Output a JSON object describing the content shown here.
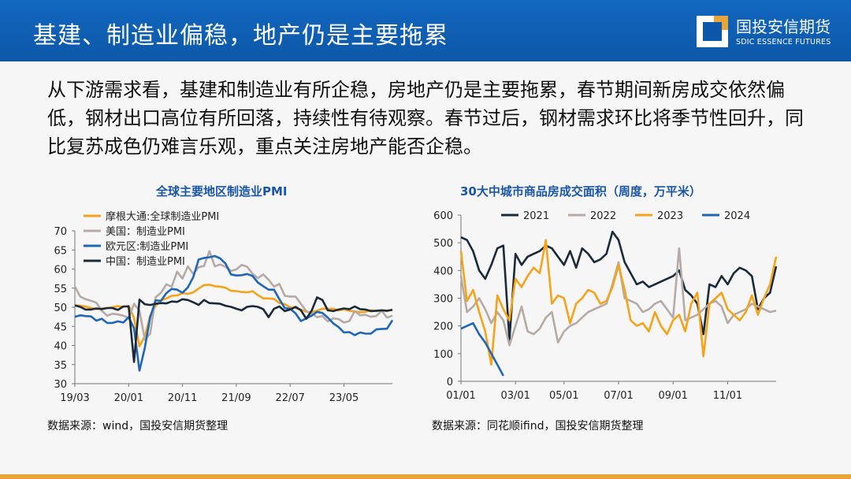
{
  "header": {
    "title": "基建、制造业偏稳，地产仍是主要拖累"
  },
  "logo": {
    "name_cn": "国投安信期货",
    "name_en": "SDIC ESSENCE FUTURES"
  },
  "intro": {
    "text": "从下游需求看，基建和制造业有所企稳，房地产仍是主要拖累，春节期间新房成交依然偏低，钢材出口高位有所回落，持续性有待观察。春节过后，钢材需求环比将季节性回升，同比复苏成色仍难言乐观，重点关注房地产能否企稳。"
  },
  "colors": {
    "header": "#0d57a8",
    "title_blue": "#1a56a8",
    "accent": "#e8a53a"
  },
  "chart_data": [
    {
      "type": "line",
      "title": "全球主要地区制造业PMI",
      "xlabel": "",
      "ylabel": "",
      "ylim": [
        30,
        70
      ],
      "yticks": [
        30,
        35,
        40,
        45,
        50,
        55,
        60,
        65,
        70
      ],
      "xticks": [
        "19/03",
        "20/01",
        "20/11",
        "21/09",
        "22/07",
        "23/05"
      ],
      "x_count": 60,
      "x_tick_index": [
        0,
        10,
        20,
        30,
        40,
        50
      ],
      "legend_position": "top-left",
      "series": [
        {
          "name": "摩根大通:全球制造业PMI",
          "color": "#f5a31a",
          "values": [
            50.5,
            50.4,
            50.2,
            49.8,
            49.5,
            49.7,
            49.8,
            50.0,
            50.3,
            50.1,
            50.4,
            47.2,
            39.8,
            42.4,
            47.8,
            50.3,
            51.8,
            52.3,
            53.0,
            53.1,
            53.7,
            53.5,
            53.9,
            54.9,
            55.8,
            55.9,
            55.5,
            55.4,
            55.1,
            54.3,
            54.2,
            54.0,
            53.9,
            54.2,
            53.2,
            52.3,
            52.3,
            52.2,
            51.1,
            50.8,
            50.0,
            49.8,
            49.4,
            48.8,
            48.7,
            49.1,
            49.6,
            49.6,
            49.6,
            49.2,
            49.4,
            49.1,
            48.9,
            48.7,
            48.8,
            49.2,
            49.0,
            49.2,
            49.0,
            49.4
          ]
        },
        {
          "name": "美国：制造业PMI",
          "color": "#b5aaa5",
          "values": [
            55.4,
            52.8,
            52.1,
            51.7,
            51.2,
            49.1,
            47.8,
            48.3,
            48.1,
            47.8,
            47.2,
            50.9,
            49.1,
            41.5,
            43.1,
            52.6,
            53.8,
            56.0,
            55.4,
            59.3,
            57.5,
            60.7,
            58.7,
            60.5,
            60.8,
            64.7,
            60.7,
            61.2,
            60.6,
            59.5,
            59.9,
            61.1,
            60.6,
            58.8,
            57.6,
            58.6,
            57.2,
            55.4,
            56.1,
            53.0,
            52.8,
            52.8,
            50.9,
            49.0,
            48.4,
            47.4,
            47.7,
            46.3,
            47.1,
            46.9,
            46.0,
            46.4,
            49.0,
            47.9,
            48.0,
            47.5,
            47.7,
            49.1,
            47.3,
            47.8
          ]
        },
        {
          "name": "欧元区:制造业PMI",
          "color": "#2066b8",
          "values": [
            47.5,
            47.9,
            47.7,
            47.6,
            46.5,
            47.0,
            45.9,
            45.9,
            46.3,
            46.0,
            47.4,
            44.5,
            33.4,
            39.4,
            47.4,
            51.8,
            51.7,
            53.7,
            54.8,
            54.6,
            53.8,
            55.2,
            57.9,
            62.5,
            62.9,
            63.1,
            63.4,
            62.8,
            61.4,
            58.6,
            58.3,
            58.4,
            58.7,
            58.2,
            56.5,
            55.5,
            54.6,
            54.6,
            52.1,
            49.8,
            49.6,
            48.4,
            46.4,
            47.1,
            47.8,
            48.8,
            48.5,
            47.3,
            45.8,
            44.8,
            43.4,
            43.5,
            42.7,
            43.4,
            43.1,
            43.1,
            44.2,
            44.3,
            44.4,
            46.6
          ]
        },
        {
          "name": "中国：制造业PMI",
          "color": "#1a2a3a",
          "values": [
            50.5,
            50.1,
            49.4,
            49.4,
            49.7,
            49.5,
            49.8,
            49.8,
            49.3,
            50.2,
            50.2,
            35.7,
            52.0,
            50.8,
            50.6,
            50.9,
            51.1,
            51.0,
            51.5,
            51.4,
            52.1,
            51.9,
            51.3,
            50.6,
            51.9,
            51.1,
            51.0,
            50.9,
            50.4,
            50.1,
            49.6,
            49.2,
            50.1,
            50.3,
            50.1,
            49.5,
            47.4,
            49.6,
            50.2,
            49.0,
            49.4,
            50.1,
            49.2,
            47.0,
            49.1,
            52.6,
            51.9,
            49.2,
            49.0,
            49.4,
            49.7,
            49.5,
            50.2,
            49.5,
            49.4,
            49.0,
            49.1,
            49.2,
            49.1,
            49.3
          ]
        }
      ]
    },
    {
      "type": "line",
      "title": "30大中城市商品房成交面积（周度，万平米）",
      "xlabel": "",
      "ylabel": "",
      "ylim": [
        0,
        600
      ],
      "yticks": [
        0,
        100,
        200,
        300,
        400,
        500,
        600
      ],
      "xticks": [
        "01/01",
        "03/01",
        "05/01",
        "07/01",
        "09/01",
        "11/01"
      ],
      "x_count": 53,
      "x_tick_index": [
        0,
        9,
        17,
        26,
        35,
        44
      ],
      "legend_position": "top",
      "series": [
        {
          "name": "2021",
          "color": "#1a2a3a",
          "values": [
            520,
            510,
            470,
            400,
            370,
            420,
            480,
            490,
            150,
            460,
            420,
            450,
            460,
            470,
            490,
            480,
            450,
            420,
            470,
            410,
            480,
            460,
            430,
            440,
            460,
            540,
            510,
            430,
            390,
            350,
            360,
            340,
            350,
            360,
            370,
            380,
            400,
            330,
            310,
            280,
            170,
            350,
            340,
            380,
            350,
            390,
            410,
            400,
            380,
            260,
            300,
            320,
            415
          ]
        },
        {
          "name": "2022",
          "color": "#b5aaa5",
          "values": [
            380,
            250,
            270,
            300,
            260,
            210,
            250,
            220,
            130,
            200,
            270,
            180,
            170,
            190,
            230,
            250,
            140,
            180,
            200,
            210,
            230,
            250,
            260,
            270,
            280,
            350,
            430,
            300,
            290,
            280,
            250,
            260,
            280,
            290,
            260,
            230,
            480,
            220,
            230,
            240,
            260,
            280,
            290,
            270,
            210,
            240,
            250,
            260,
            280,
            270,
            260,
            250,
            255
          ]
        },
        {
          "name": "2023",
          "color": "#f5a31a",
          "values": [
            470,
            290,
            330,
            250,
            180,
            60,
            310,
            260,
            220,
            370,
            340,
            380,
            410,
            390,
            510,
            280,
            310,
            300,
            210,
            280,
            300,
            330,
            320,
            280,
            290,
            340,
            420,
            330,
            220,
            200,
            210,
            180,
            250,
            200,
            170,
            220,
            240,
            180,
            280,
            320,
            90,
            280,
            300,
            320,
            260,
            240,
            220,
            250,
            310,
            240,
            300,
            350,
            450
          ]
        },
        {
          "name": "2024",
          "color": "#2066b8",
          "values": [
            190,
            200,
            210,
            170,
            140,
            100,
            60,
            20
          ]
        }
      ]
    }
  ],
  "sources": {
    "left": "数据来源：wind，国投安信期货整理",
    "right": "数据来源：同花顺ifind，国投安信期货整理"
  }
}
